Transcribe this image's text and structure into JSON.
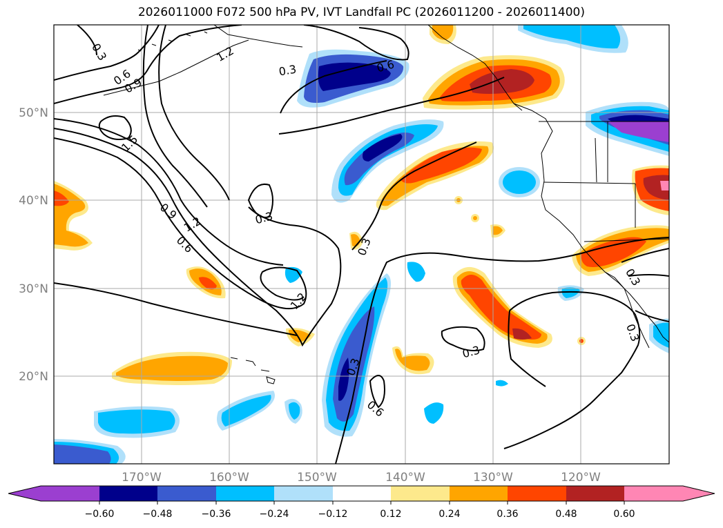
{
  "title": "2026011000 F072 500 hPa PV, IVT Landfall PC (2026011200 - 2026011400)",
  "map": {
    "lon_labels": [
      "170°W",
      "160°W",
      "150°W",
      "140°W",
      "130°W",
      "120°W"
    ],
    "lat_labels": [
      "50°N",
      "40°N",
      "30°N",
      "20°N"
    ],
    "contour_labels": [
      "0.3",
      "0.6",
      "0.9",
      "1.2",
      "1.5",
      "0.6",
      "0.3",
      "0.9",
      "1.2",
      "0.6",
      "0.3",
      "1.2",
      "0.3",
      "0.3",
      "0.6",
      "0.3",
      "0.3",
      "0.3"
    ]
  },
  "colorbar": {
    "ticks": [
      "−0.60",
      "−0.48",
      "−0.36",
      "−0.24",
      "−0.12",
      "0.12",
      "0.24",
      "0.36",
      "0.48",
      "0.60"
    ],
    "colors": {
      "under": "#9b3fd0",
      "neg_060": "#00008b",
      "neg_048": "#3a5bcf",
      "neg_036": "#00bfff",
      "neg_024": "#b0e0fa",
      "neutral": "#ffffff",
      "pos_012": "#fde98c",
      "pos_024": "#ffa500",
      "pos_036": "#ff4500",
      "pos_048": "#b22222",
      "over": "#ff86b4"
    }
  }
}
